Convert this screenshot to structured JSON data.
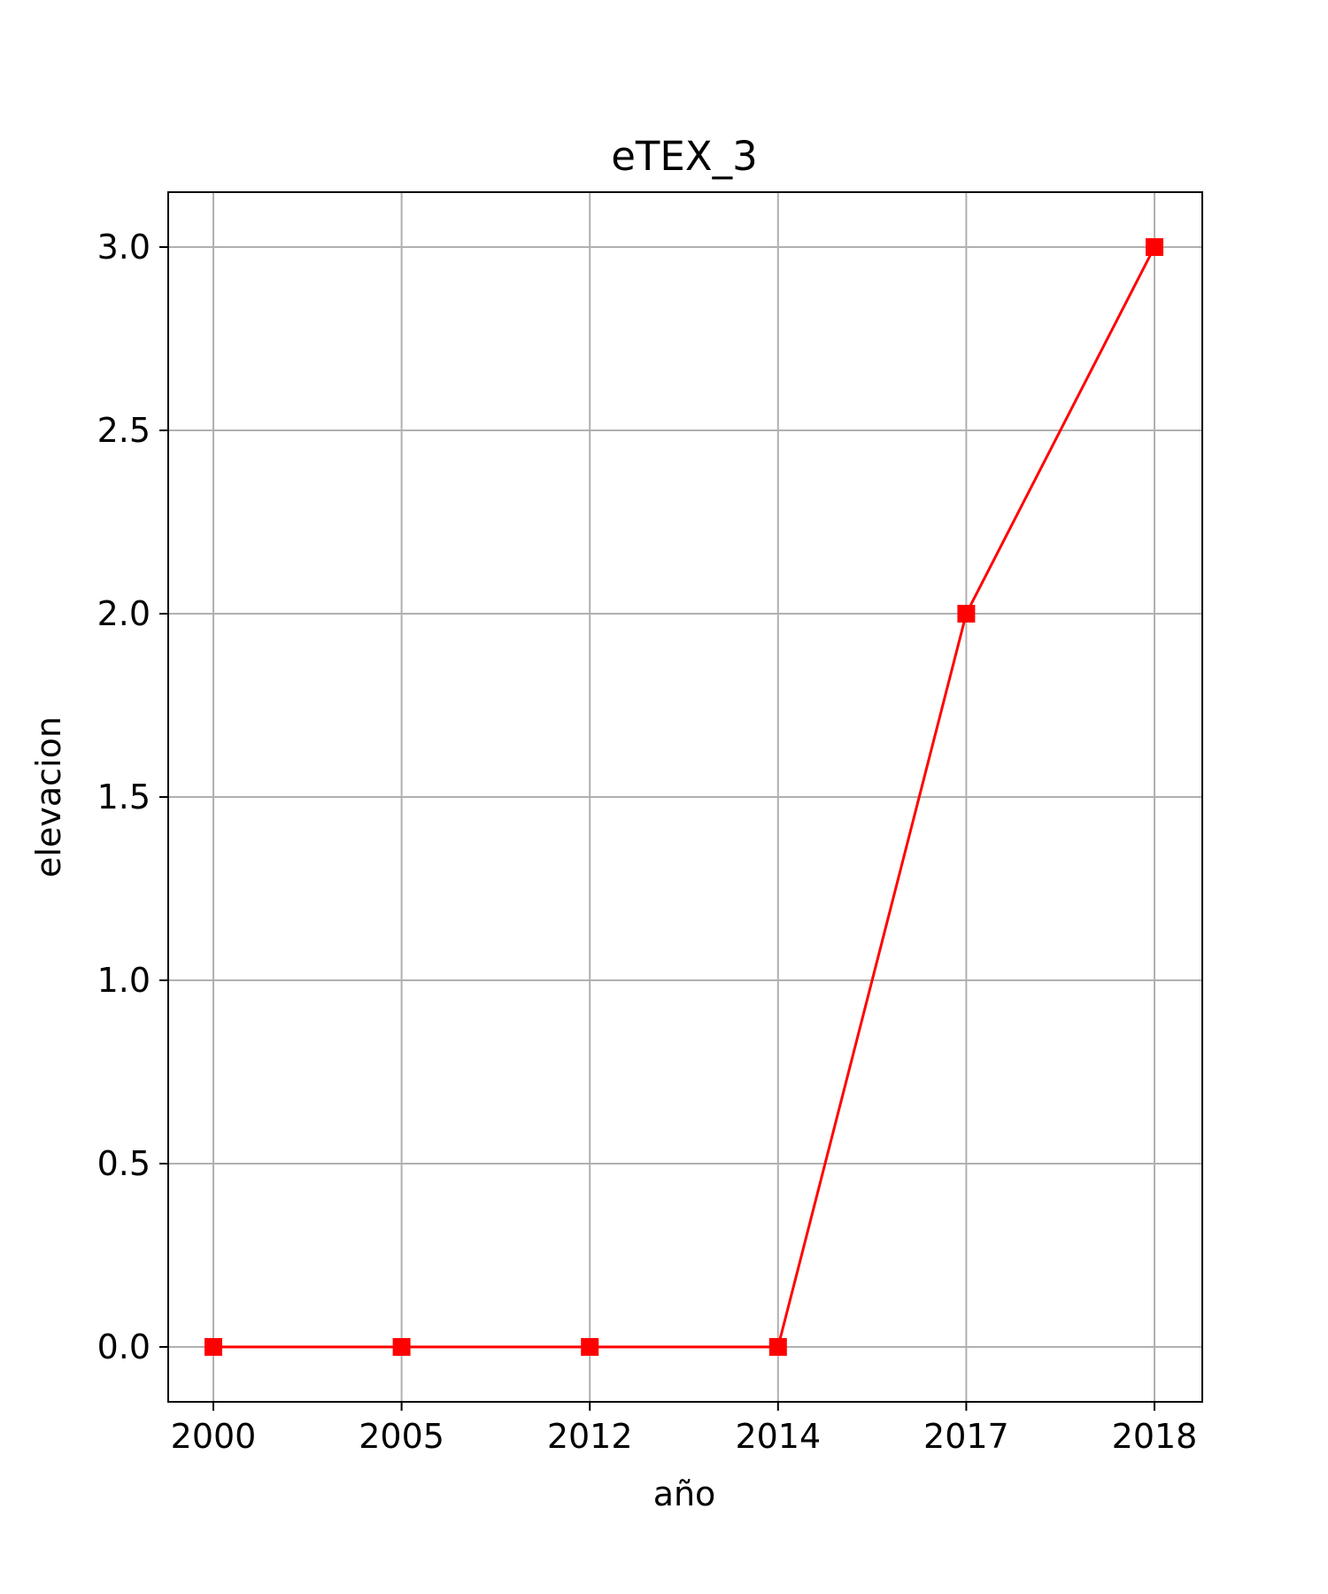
{
  "chart_data": {
    "type": "line",
    "title": "eTEX_3",
    "xlabel": "año",
    "ylabel": "elevacion",
    "categories": [
      "2000",
      "2005",
      "2012",
      "2014",
      "2017",
      "2018"
    ],
    "series": [
      {
        "values": [
          0.0,
          0.0,
          0.0,
          0.0,
          2.0,
          3.0
        ],
        "color": "#ff0000",
        "marker": "square"
      }
    ],
    "yticks": [
      0.0,
      0.5,
      1.0,
      1.5,
      2.0,
      2.5,
      3.0
    ],
    "ytick_labels": [
      "0.0",
      "0.5",
      "1.0",
      "1.5",
      "2.0",
      "2.5",
      "3.0"
    ],
    "ylim": [
      -0.15,
      3.15
    ],
    "grid": true,
    "grid_color": "#b0b0b0"
  }
}
